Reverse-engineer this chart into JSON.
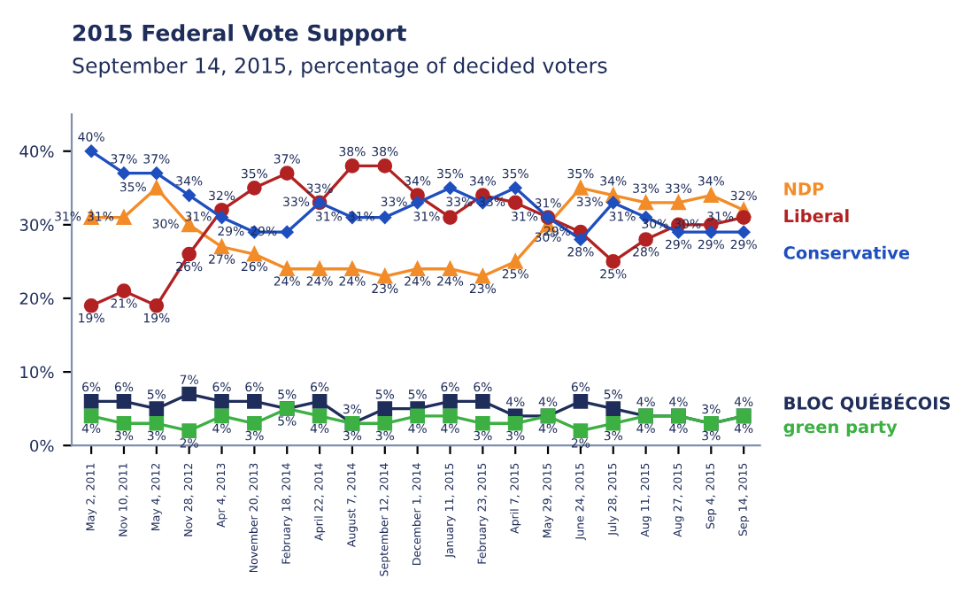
{
  "chart_data": {
    "type": "line",
    "title": "2015 Federal Vote Support",
    "subtitle": "September 14, 2015, percentage of decided voters",
    "categories": [
      "May 2, 2011",
      "Nov 10, 2011",
      "May 4, 2012",
      "Nov 28, 2012",
      "Apr 4, 2013",
      "November 20, 2013",
      "February 18, 2014",
      "April 22, 2014",
      "August 7, 2014",
      "September 12, 2014",
      "December 1, 2014",
      "January 11, 2015",
      "February 23, 2015",
      "April 7, 2015",
      "May 29, 2015",
      "June 24, 2015",
      "July 28, 2015",
      "Aug 11, 2015",
      "Aug 27, 2015",
      "Sep 4, 2015",
      "Sep 14, 2015"
    ],
    "series": [
      {
        "name": "NDP",
        "color": "#f28c28",
        "marker": "triangle",
        "values": [
          31,
          31,
          35,
          30,
          27,
          26,
          24,
          24,
          24,
          23,
          24,
          24,
          23,
          25,
          30,
          35,
          34,
          33,
          33,
          34,
          32
        ],
        "value_labels": [
          "31%",
          "31%",
          "35%",
          "30%",
          "27%",
          "26%",
          "24%",
          "24%",
          "24%",
          "23%",
          "24%",
          "24%",
          "23%",
          "25%",
          "30%",
          "35%",
          "34%",
          "33%",
          "33%",
          "34%",
          "32%"
        ]
      },
      {
        "name": "Liberal",
        "color": "#b22222",
        "marker": "circle",
        "values": [
          19,
          21,
          19,
          26,
          32,
          35,
          37,
          33,
          38,
          38,
          34,
          31,
          34,
          33,
          31,
          29,
          25,
          28,
          30,
          30,
          31
        ],
        "value_labels": [
          "19%",
          "21%",
          "19%",
          "26%",
          "32%",
          "35%",
          "37%",
          "33%",
          "38%",
          "38%",
          "34%",
          "31%",
          "34%",
          "33%",
          "31%",
          "29%",
          "25%",
          "28%",
          "30%",
          "30%",
          "31%"
        ]
      },
      {
        "name": "Conservative",
        "color": "#1f4fbf",
        "marker": "diamond",
        "values": [
          40,
          37,
          37,
          34,
          31,
          29,
          29,
          33,
          31,
          31,
          33,
          35,
          33,
          35,
          31,
          28,
          33,
          31,
          29,
          29,
          29
        ],
        "value_labels": [
          "40%",
          "37%",
          "37%",
          "34%",
          "31%",
          "29%",
          "29%",
          "33%",
          "31%",
          "31%",
          "33%",
          "35%",
          "33%",
          "35%",
          "31%",
          "28%",
          "33%",
          "31%",
          "29%",
          "29%",
          "29%"
        ]
      },
      {
        "name": "BLOC QUÉBÉCOIS",
        "color": "#1f2d5a",
        "marker": "square",
        "values": [
          6,
          6,
          5,
          7,
          6,
          6,
          5,
          6,
          3,
          5,
          5,
          6,
          6,
          4,
          4,
          6,
          5,
          4,
          4,
          3,
          4
        ],
        "value_labels": [
          "6%",
          "6%",
          "5%",
          "7%",
          "6%",
          "6%",
          "5%",
          "6%",
          "3%",
          "5%",
          "5%",
          "6%",
          "6%",
          "4%",
          "4%",
          "6%",
          "5%",
          "4%",
          "4%",
          "3%",
          "4%"
        ]
      },
      {
        "name": "green party",
        "color": "#3cb043",
        "marker": "square",
        "values": [
          4,
          3,
          3,
          2,
          4,
          3,
          5,
          4,
          3,
          3,
          4,
          4,
          3,
          3,
          4,
          2,
          3,
          4,
          4,
          3,
          4
        ],
        "value_labels": [
          "4%",
          "3%",
          "3%",
          "2%",
          "4%",
          "3%",
          "5%",
          "4%",
          "3%",
          "3%",
          "4%",
          "4%",
          "3%",
          "3%",
          "4%",
          "2%",
          "3%",
          "4%",
          "4%",
          "3%",
          "4%"
        ]
      }
    ],
    "ylim": [
      0,
      45
    ],
    "yticks": [
      {
        "value": 0,
        "label": "0%"
      },
      {
        "value": 10,
        "label": "10%"
      },
      {
        "value": 20,
        "label": "20%"
      },
      {
        "value": 30,
        "label": "30%"
      },
      {
        "value": 40,
        "label": "40%"
      }
    ],
    "grid": false,
    "legend": false
  }
}
